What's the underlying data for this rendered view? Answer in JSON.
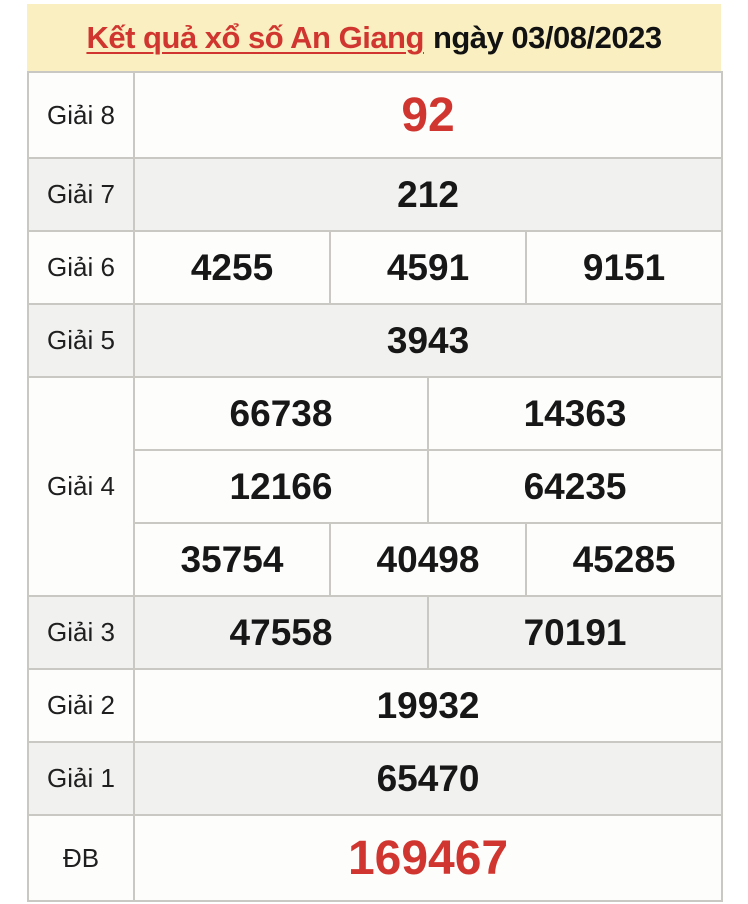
{
  "header": {
    "title": "Kết quả xổ số An Giang",
    "date_label": "ngày 03/08/2023"
  },
  "colors": {
    "accent_red": "#d0362f",
    "header_bg": "#f9efc1",
    "row_white": "#fdfdfc",
    "row_gray": "#f1f1ef",
    "border_color": "#c9c8c2"
  },
  "results": [
    {
      "label": "Giải 8",
      "numbers": [
        "92"
      ],
      "highlight": true
    },
    {
      "label": "Giải 7",
      "numbers": [
        "212"
      ]
    },
    {
      "label": "Giải 6",
      "numbers": [
        "4255",
        "4591",
        "9151"
      ]
    },
    {
      "label": "Giải 5",
      "numbers": [
        "3943"
      ]
    },
    {
      "label": "Giải 4",
      "rows": [
        [
          "66738",
          "14363"
        ],
        [
          "12166",
          "64235"
        ],
        [
          "35754",
          "40498",
          "45285"
        ]
      ]
    },
    {
      "label": "Giải 3",
      "numbers": [
        "47558",
        "70191"
      ]
    },
    {
      "label": "Giải 2",
      "numbers": [
        "19932"
      ]
    },
    {
      "label": "Giải 1",
      "numbers": [
        "65470"
      ]
    },
    {
      "label": "ĐB",
      "numbers": [
        "169467"
      ],
      "highlight": true
    }
  ]
}
